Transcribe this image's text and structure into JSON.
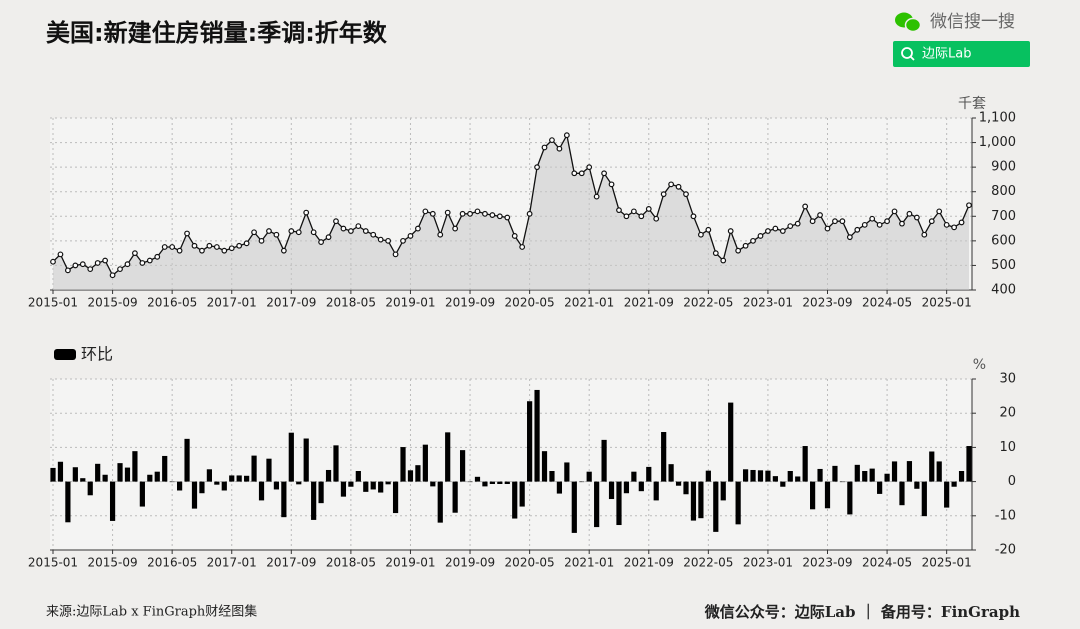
{
  "header": {
    "title": "美国:新建住房销量:季调:折年数",
    "wechat_search": "微信搜一搜",
    "search_box": "边际Lab"
  },
  "footer": {
    "source": "来源:边际Lab x FinGraph财经图集",
    "account": "微信公众号：边际Lab ｜ 备用号：FinGraph"
  },
  "chart_data": [
    {
      "type": "line",
      "y_label": "千套",
      "color": "#111111",
      "grid": true,
      "ylim": [
        400,
        1100
      ],
      "yticks": [
        400,
        500,
        600,
        700,
        800,
        900,
        {
          "value": 1000,
          "label": "1,000"
        },
        {
          "value": 1100,
          "label": "1,100"
        }
      ],
      "categories": [
        "2015-01",
        null,
        null,
        null,
        null,
        null,
        null,
        null,
        "2015-09",
        null,
        null,
        null,
        null,
        null,
        null,
        null,
        "2016-05",
        null,
        null,
        null,
        null,
        null,
        null,
        null,
        "2017-01",
        null,
        null,
        null,
        null,
        null,
        null,
        null,
        "2017-09",
        null,
        null,
        null,
        null,
        null,
        null,
        null,
        "2018-05",
        null,
        null,
        null,
        null,
        null,
        null,
        null,
        "2019-01",
        null,
        null,
        null,
        null,
        null,
        null,
        null,
        "2019-09",
        null,
        null,
        null,
        null,
        null,
        null,
        null,
        "2020-05",
        null,
        null,
        null,
        null,
        null,
        null,
        null,
        "2021-01",
        null,
        null,
        null,
        null,
        null,
        null,
        null,
        "2021-09",
        null,
        null,
        null,
        null,
        null,
        null,
        null,
        "2022-05",
        null,
        null,
        null,
        null,
        null,
        null,
        null,
        "2023-01",
        null,
        null,
        null,
        null,
        null,
        null,
        null,
        "2023-09",
        null,
        null,
        null,
        null,
        null,
        null,
        null,
        "2024-05",
        null,
        null,
        null,
        null,
        null,
        null,
        null,
        "2025-01",
        null,
        null,
        null
      ],
      "values": [
        515,
        545,
        480,
        500,
        505,
        485,
        510,
        520,
        460,
        485,
        505,
        550,
        510,
        520,
        535,
        575,
        575,
        560,
        630,
        580,
        560,
        580,
        575,
        560,
        570,
        580,
        590,
        635,
        600,
        640,
        625,
        560,
        640,
        635,
        715,
        635,
        595,
        615,
        680,
        650,
        640,
        660,
        640,
        625,
        605,
        600,
        545,
        600,
        620,
        650,
        720,
        710,
        625,
        715,
        650,
        710,
        710,
        720,
        710,
        705,
        700,
        695,
        620,
        575,
        710,
        900,
        980,
        1010,
        975,
        1030,
        875,
        875,
        900,
        780,
        875,
        830,
        725,
        700,
        720,
        700,
        730,
        690,
        790,
        830,
        820,
        790,
        700,
        625,
        645,
        550,
        520,
        640,
        560,
        580,
        600,
        620,
        640,
        650,
        640,
        660,
        670,
        740,
        680,
        705,
        650,
        680,
        680,
        615,
        645,
        665,
        690,
        665,
        680,
        720,
        670,
        710,
        695,
        625,
        680,
        720,
        665,
        655,
        675,
        745
      ]
    },
    {
      "type": "bar",
      "y_label": "%",
      "grid": true,
      "ylim": [
        -20,
        30
      ],
      "yticks": [
        -20,
        -10,
        0,
        10,
        20,
        30
      ],
      "categories": [
        "2015-01",
        null,
        null,
        null,
        null,
        null,
        null,
        null,
        "2015-09",
        null,
        null,
        null,
        null,
        null,
        null,
        null,
        "2016-05",
        null,
        null,
        null,
        null,
        null,
        null,
        null,
        "2017-01",
        null,
        null,
        null,
        null,
        null,
        null,
        null,
        "2017-09",
        null,
        null,
        null,
        null,
        null,
        null,
        null,
        "2018-05",
        null,
        null,
        null,
        null,
        null,
        null,
        null,
        "2019-01",
        null,
        null,
        null,
        null,
        null,
        null,
        null,
        "2019-09",
        null,
        null,
        null,
        null,
        null,
        null,
        null,
        "2020-05",
        null,
        null,
        null,
        null,
        null,
        null,
        null,
        "2021-01",
        null,
        null,
        null,
        null,
        null,
        null,
        null,
        "2021-09",
        null,
        null,
        null,
        null,
        null,
        null,
        null,
        "2022-05",
        null,
        null,
        null,
        null,
        null,
        null,
        null,
        "2023-01",
        null,
        null,
        null,
        null,
        null,
        null,
        null,
        "2023-09",
        null,
        null,
        null,
        null,
        null,
        null,
        null,
        "2024-05",
        null,
        null,
        null,
        null,
        null,
        null,
        null,
        "2025-01",
        null,
        null,
        null
      ],
      "series": [
        {
          "name": "环比",
          "color": "#000000",
          "values": [
            4.0,
            5.8,
            -11.9,
            4.2,
            1.0,
            -4.0,
            5.2,
            2.0,
            -11.5,
            5.4,
            4.1,
            8.9,
            -7.3,
            2.0,
            2.9,
            7.5,
            0,
            -2.6,
            12.5,
            -7.9,
            -3.4,
            3.6,
            -0.9,
            -2.6,
            1.8,
            1.8,
            1.7,
            7.6,
            -5.5,
            6.7,
            -2.3,
            -10.4,
            14.3,
            -0.8,
            12.6,
            -11.2,
            -6.3,
            3.4,
            10.6,
            -4.4,
            -1.5,
            3.1,
            -3.0,
            -2.3,
            -3.2,
            -0.8,
            -9.2,
            10.1,
            3.3,
            4.8,
            10.8,
            -1.4,
            -12.0,
            14.4,
            -9.1,
            9.2,
            0,
            1.4,
            -1.4,
            -0.7,
            -0.7,
            -0.7,
            -10.8,
            -7.3,
            23.5,
            26.8,
            8.9,
            3.1,
            -3.5,
            5.6,
            -15.0,
            0,
            2.9,
            -13.3,
            12.2,
            -5.1,
            -12.7,
            -3.4,
            2.9,
            -2.8,
            4.3,
            -5.5,
            14.5,
            5.1,
            -1.2,
            -3.7,
            -11.4,
            -10.7,
            3.2,
            -14.7,
            -5.5,
            23.1,
            -12.5,
            3.6,
            3.4,
            3.3,
            3.2,
            1.6,
            -1.5,
            3.1,
            1.5,
            10.4,
            -8.1,
            3.7,
            -7.8,
            4.6,
            0,
            -9.6,
            4.9,
            3.1,
            3.8,
            -3.6,
            2.3,
            5.9,
            -6.9,
            6.0,
            -2.1,
            -10.1,
            8.8,
            5.9,
            -7.6,
            -1.5,
            3.1,
            10.4
          ]
        }
      ]
    }
  ]
}
